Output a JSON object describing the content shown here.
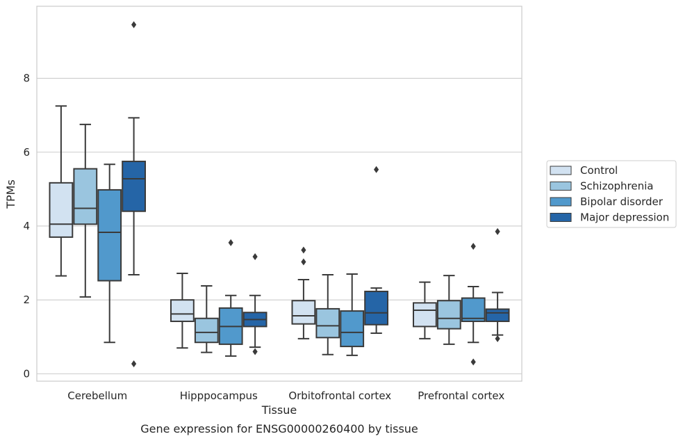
{
  "chart_data": {
    "type": "boxplot",
    "title": "Gene expression for ENSG00000260400 by tissue",
    "xlabel": "Tissue",
    "ylabel": "TPMs",
    "ylim": [
      -0.2,
      9.95
    ],
    "yticks": [
      0,
      2,
      4,
      6,
      8
    ],
    "grid": "horizontal",
    "legend_position": "right",
    "categories": [
      "Cerebellum",
      "Hipppocampus",
      "Orbitofrontal cortex",
      "Prefrontal cortex"
    ],
    "series": [
      {
        "name": "Control",
        "color": "#d2e2f1",
        "boxes": [
          {
            "whislo": 2.65,
            "q1": 3.7,
            "med": 4.05,
            "q3": 5.17,
            "whishi": 7.25,
            "fliers": []
          },
          {
            "whislo": 0.7,
            "q1": 1.42,
            "med": 1.62,
            "q3": 2.0,
            "whishi": 2.72,
            "fliers": []
          },
          {
            "whislo": 0.95,
            "q1": 1.35,
            "med": 1.57,
            "q3": 1.98,
            "whishi": 2.55,
            "fliers": [
              3.03,
              3.35
            ]
          },
          {
            "whislo": 0.95,
            "q1": 1.28,
            "med": 1.72,
            "q3": 1.92,
            "whishi": 2.48,
            "fliers": []
          }
        ]
      },
      {
        "name": "Schizophrenia",
        "color": "#9ac5df",
        "boxes": [
          {
            "whislo": 2.08,
            "q1": 4.05,
            "med": 4.48,
            "q3": 5.55,
            "whishi": 6.75,
            "fliers": []
          },
          {
            "whislo": 0.58,
            "q1": 0.85,
            "med": 1.12,
            "q3": 1.5,
            "whishi": 2.38,
            "fliers": []
          },
          {
            "whislo": 0.52,
            "q1": 0.98,
            "med": 1.3,
            "q3": 1.76,
            "whishi": 2.68,
            "fliers": []
          },
          {
            "whislo": 0.8,
            "q1": 1.22,
            "med": 1.5,
            "q3": 1.98,
            "whishi": 2.66,
            "fliers": []
          }
        ]
      },
      {
        "name": "Bipolar disorder",
        "color": "#5199cc",
        "boxes": [
          {
            "whislo": 0.85,
            "q1": 2.52,
            "med": 3.83,
            "q3": 4.98,
            "whishi": 5.67,
            "fliers": []
          },
          {
            "whislo": 0.48,
            "q1": 0.8,
            "med": 1.28,
            "q3": 1.78,
            "whishi": 2.12,
            "fliers": [
              3.55
            ]
          },
          {
            "whislo": 0.5,
            "q1": 0.74,
            "med": 1.12,
            "q3": 1.7,
            "whishi": 2.7,
            "fliers": []
          },
          {
            "whislo": 0.85,
            "q1": 1.42,
            "med": 1.5,
            "q3": 2.05,
            "whishi": 2.36,
            "fliers": [
              0.32,
              3.45
            ]
          }
        ]
      },
      {
        "name": "Major depression",
        "color": "#2565a7",
        "boxes": [
          {
            "whislo": 2.68,
            "q1": 4.4,
            "med": 5.28,
            "q3": 5.75,
            "whishi": 6.93,
            "fliers": [
              0.27,
              9.45
            ]
          },
          {
            "whislo": 0.72,
            "q1": 1.28,
            "med": 1.47,
            "q3": 1.66,
            "whishi": 2.12,
            "fliers": [
              0.6,
              3.17
            ]
          },
          {
            "whislo": 1.1,
            "q1": 1.33,
            "med": 1.65,
            "q3": 2.23,
            "whishi": 2.32,
            "fliers": [
              5.53
            ]
          },
          {
            "whislo": 1.05,
            "q1": 1.42,
            "med": 1.65,
            "q3": 1.75,
            "whishi": 2.2,
            "fliers": [
              0.95,
              3.85
            ]
          }
        ]
      }
    ]
  }
}
